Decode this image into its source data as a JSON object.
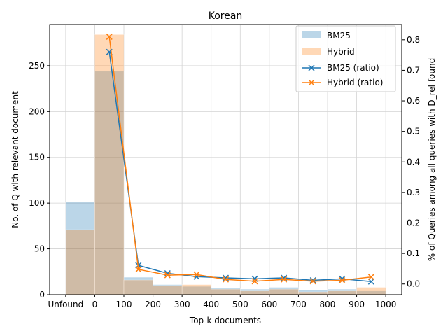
{
  "chart_data": {
    "type": "bar",
    "title": "Korean",
    "xlabel": "Top-k documents",
    "ylabel_left": "No. of Q with relevant document",
    "ylabel_right": "% of Queries among all queries with D_rel found",
    "x_ticks": [
      {
        "label": "Unfound",
        "value": -100
      },
      {
        "label": "0",
        "value": 0
      },
      {
        "label": "100",
        "value": 100
      },
      {
        "label": "200",
        "value": 200
      },
      {
        "label": "300",
        "value": 300
      },
      {
        "label": "400",
        "value": 400
      },
      {
        "label": "500",
        "value": 500
      },
      {
        "label": "600",
        "value": 600
      },
      {
        "label": "700",
        "value": 700
      },
      {
        "label": "800",
        "value": 800
      },
      {
        "label": "900",
        "value": 900
      },
      {
        "label": "1000",
        "value": 1000
      }
    ],
    "xlim": [
      -155,
      1055
    ],
    "ylim_left": [
      0,
      295
    ],
    "ylim_right": [
      -0.035,
      0.85
    ],
    "y_ticks_left": [
      0,
      50,
      100,
      150,
      200,
      250
    ],
    "y_ticks_right": [
      0.0,
      0.1,
      0.2,
      0.3,
      0.4,
      0.5,
      0.6,
      0.7,
      0.8
    ],
    "bins": [
      -100,
      0,
      100,
      200,
      300,
      400,
      500,
      600,
      700,
      800,
      900,
      1000
    ],
    "grid": true,
    "legend_position": "top-right",
    "bar_series": [
      {
        "name": "BM25",
        "color": "#1f77b4",
        "opacity": 0.3,
        "values": [
          101,
          244,
          19,
          11,
          9,
          7,
          6,
          8,
          5,
          6,
          4
        ]
      },
      {
        "name": "Hybrid",
        "color": "#ff7f0e",
        "opacity": 0.3,
        "values": [
          71,
          284,
          16,
          10,
          11,
          6,
          4,
          6,
          3,
          4,
          8
        ]
      }
    ],
    "line_series": [
      {
        "name": "BM25 (ratio)",
        "color": "#1f77b4",
        "marker": "x",
        "x": [
          50,
          150,
          250,
          350,
          450,
          550,
          650,
          750,
          850,
          950
        ],
        "values": [
          0.76,
          0.061,
          0.035,
          0.024,
          0.02,
          0.017,
          0.02,
          0.012,
          0.017,
          0.008
        ]
      },
      {
        "name": "Hybrid (ratio)",
        "color": "#ff7f0e",
        "marker": "x",
        "x": [
          50,
          150,
          250,
          350,
          450,
          550,
          650,
          750,
          850,
          950
        ],
        "values": [
          0.81,
          0.048,
          0.029,
          0.031,
          0.015,
          0.009,
          0.015,
          0.009,
          0.012,
          0.023
        ]
      }
    ]
  }
}
